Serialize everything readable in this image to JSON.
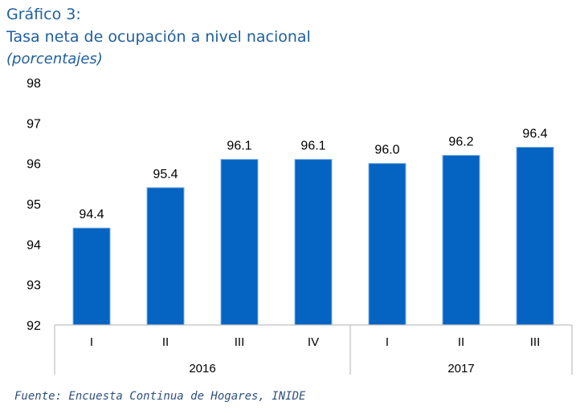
{
  "header": {
    "line1": "Gráfico 3:",
    "line2": "Tasa neta de ocupación a nivel nacional",
    "line3": "(porcentajes)"
  },
  "source": "Fuente: Encuesta Continua de Hogares, INIDE",
  "chart_data": {
    "type": "bar",
    "title": "Tasa neta de ocupación a nivel nacional",
    "subtitle": "(porcentajes)",
    "categories": [
      "I",
      "II",
      "III",
      "IV",
      "I",
      "II",
      "III"
    ],
    "groups": [
      {
        "label": "2016",
        "count": 4
      },
      {
        "label": "2017",
        "count": 3
      }
    ],
    "values": [
      94.4,
      95.4,
      96.1,
      96.1,
      96.0,
      96.2,
      96.4
    ],
    "value_labels": [
      "94.4",
      "95.4",
      "96.1",
      "96.1",
      "96.0",
      "96.2",
      "96.4"
    ],
    "ylim": [
      92,
      98
    ],
    "yticks": [
      92,
      93,
      94,
      95,
      96,
      97,
      98
    ],
    "bar_color": "#0563c1",
    "grid": false,
    "legend": "none",
    "xlabel": "",
    "ylabel": ""
  }
}
